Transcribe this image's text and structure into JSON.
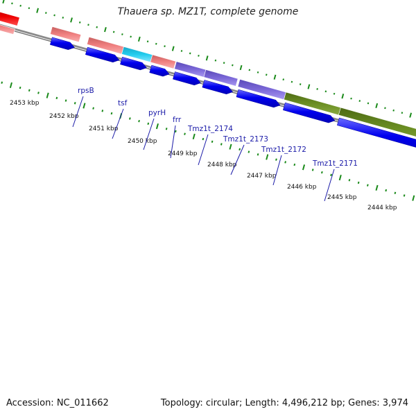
{
  "title": "Thauera sp. MZ1T, complete genome",
  "footer": {
    "accession": "Accession: NC_011662",
    "summary": "Topology: circular; Length: 4,496,212 bp; Genes: 3,974"
  },
  "kbp_labels": [
    "2453 kbp",
    "2452 kbp",
    "2451 kbp",
    "2450 kbp",
    "2449 kbp",
    "2448 kbp",
    "2447 kbp",
    "2446 kbp",
    "2445 kbp",
    "2444 kbp"
  ],
  "gene_labels": [
    "rpsB",
    "tsf",
    "pyrH",
    "frr",
    "Tmz1t_2174",
    "Tmz1t_2173",
    "Tmz1t_2172",
    "Tmz1t_2171"
  ],
  "colors": {
    "backbone": "#808080",
    "cds_arrow": "#0000ee",
    "feature_pink": "#f08080",
    "feature_cyan": "#22ccee",
    "feature_purple": "#7b68d8",
    "feature_olive": "#6b8e23",
    "feature_red": "#ee0000",
    "tick": "#1a8a1a",
    "label_link": "#1a1aa8"
  }
}
